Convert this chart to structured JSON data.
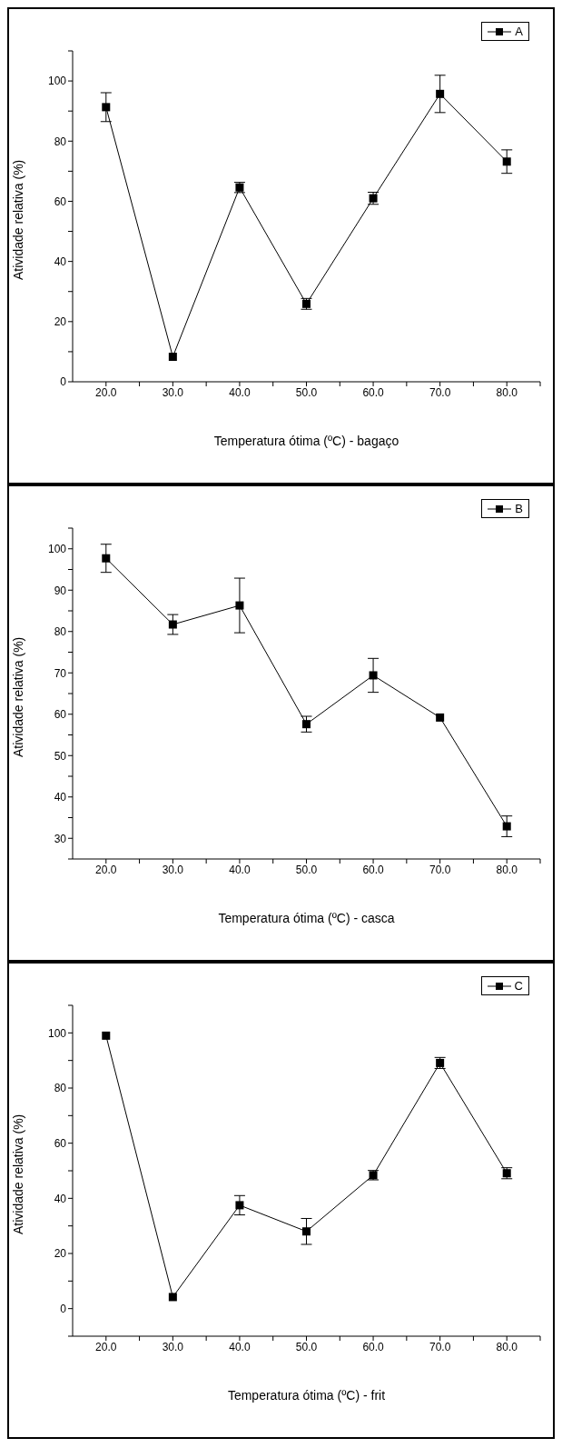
{
  "chart_data": [
    {
      "type": "line",
      "xlabel": "Temperatura ótima (ºC) - bagaço",
      "ylabel": "Atividade relativa (%)",
      "x": [
        20,
        30,
        40,
        50,
        60,
        70,
        80
      ],
      "series": [
        {
          "name": "A",
          "color": "#000000",
          "values": [
            91.3,
            8.3,
            64.6,
            25.9,
            61.0,
            95.7,
            73.2
          ],
          "errors": [
            4.8,
            null,
            1.7,
            1.8,
            2.0,
            6.2,
            3.9
          ]
        }
      ],
      "xlim": [
        15,
        85
      ],
      "xticks": [
        {
          "value": 20,
          "label": "20.0"
        },
        {
          "value": 25,
          "label": null
        },
        {
          "value": 30,
          "label": "30.0"
        },
        {
          "value": 35,
          "label": null
        },
        {
          "value": 40,
          "label": "40.0"
        },
        {
          "value": 45,
          "label": null
        },
        {
          "value": 50,
          "label": "50.0"
        },
        {
          "value": 55,
          "label": null
        },
        {
          "value": 60,
          "label": "60.0"
        },
        {
          "value": 65,
          "label": null
        },
        {
          "value": 70,
          "label": "70.0"
        },
        {
          "value": 75,
          "label": null
        },
        {
          "value": 80,
          "label": "80.0"
        },
        {
          "value": 85,
          "label": null
        }
      ],
      "ylim": [
        0,
        110
      ],
      "yticks": [
        0,
        {
          "value": 10,
          "label": null
        },
        20,
        {
          "value": 30,
          "label": null
        },
        40,
        {
          "value": 50,
          "label": null
        },
        60,
        {
          "value": 70,
          "label": null
        },
        80,
        {
          "value": 90,
          "label": null
        },
        100,
        {
          "value": 110,
          "label": null
        }
      ],
      "grid": false,
      "legend": "top right",
      "marker": "square",
      "line_style": "solid"
    },
    {
      "type": "line",
      "xlabel": "Temperatura ótima (ºC) - casca",
      "ylabel": "Atividade relativa (%)",
      "x": [
        20,
        30,
        40,
        50,
        60,
        70,
        80
      ],
      "series": [
        {
          "name": "B",
          "color": "#000000",
          "values": [
            97.7,
            81.7,
            86.3,
            57.6,
            69.4,
            59.2,
            32.9
          ],
          "errors": [
            3.4,
            2.4,
            6.6,
            1.9,
            4.1,
            null,
            2.5
          ]
        }
      ],
      "xlim": [
        15,
        85
      ],
      "xticks": [
        {
          "value": 20,
          "label": "20.0"
        },
        {
          "value": 25,
          "label": null
        },
        {
          "value": 30,
          "label": "30.0"
        },
        {
          "value": 35,
          "label": null
        },
        {
          "value": 40,
          "label": "40.0"
        },
        {
          "value": 45,
          "label": null
        },
        {
          "value": 50,
          "label": "50.0"
        },
        {
          "value": 55,
          "label": null
        },
        {
          "value": 60,
          "label": "60.0"
        },
        {
          "value": 65,
          "label": null
        },
        {
          "value": 70,
          "label": "70.0"
        },
        {
          "value": 75,
          "label": null
        },
        {
          "value": 80,
          "label": "80.0"
        },
        {
          "value": 85,
          "label": null
        }
      ],
      "ylim": [
        25,
        105
      ],
      "yticks": [
        {
          "value": 25,
          "label": null
        },
        30,
        {
          "value": 35,
          "label": null
        },
        40,
        {
          "value": 45,
          "label": null
        },
        50,
        {
          "value": 55,
          "label": null
        },
        60,
        {
          "value": 65,
          "label": null
        },
        70,
        {
          "value": 75,
          "label": null
        },
        80,
        {
          "value": 85,
          "label": null
        },
        90,
        {
          "value": 95,
          "label": null
        },
        100,
        {
          "value": 105,
          "label": null
        }
      ],
      "grid": false,
      "legend": "top right",
      "marker": "square",
      "line_style": "solid"
    },
    {
      "type": "line",
      "xlabel": "Temperatura ótima (ºC) - frit",
      "ylabel": "Atividade relativa (%)",
      "x": [
        20,
        30,
        40,
        50,
        60,
        70,
        80
      ],
      "series": [
        {
          "name": "C",
          "color": "#000000",
          "values": [
            99.0,
            4.2,
            37.5,
            28.0,
            48.4,
            89.1,
            49.1
          ],
          "errors": [
            null,
            null,
            3.5,
            4.7,
            1.7,
            2.0,
            2.0
          ]
        }
      ],
      "xlim": [
        15,
        85
      ],
      "xticks": [
        {
          "value": 20,
          "label": "20.0"
        },
        {
          "value": 25,
          "label": null
        },
        {
          "value": 30,
          "label": "30.0"
        },
        {
          "value": 35,
          "label": null
        },
        {
          "value": 40,
          "label": "40.0"
        },
        {
          "value": 45,
          "label": null
        },
        {
          "value": 50,
          "label": "50.0"
        },
        {
          "value": 55,
          "label": null
        },
        {
          "value": 60,
          "label": "60.0"
        },
        {
          "value": 65,
          "label": null
        },
        {
          "value": 70,
          "label": "70.0"
        },
        {
          "value": 75,
          "label": null
        },
        {
          "value": 80,
          "label": "80.0"
        },
        {
          "value": 85,
          "label": null
        }
      ],
      "ylim": [
        -10,
        110
      ],
      "yticks": [
        {
          "value": -10,
          "label": null
        },
        0,
        {
          "value": 10,
          "label": null
        },
        20,
        {
          "value": 30,
          "label": null
        },
        40,
        {
          "value": 50,
          "label": null
        },
        60,
        {
          "value": 70,
          "label": null
        },
        80,
        {
          "value": 90,
          "label": null
        },
        100,
        {
          "value": 110,
          "label": null
        }
      ],
      "grid": false,
      "legend": "top right",
      "marker": "square",
      "line_style": "solid"
    }
  ]
}
